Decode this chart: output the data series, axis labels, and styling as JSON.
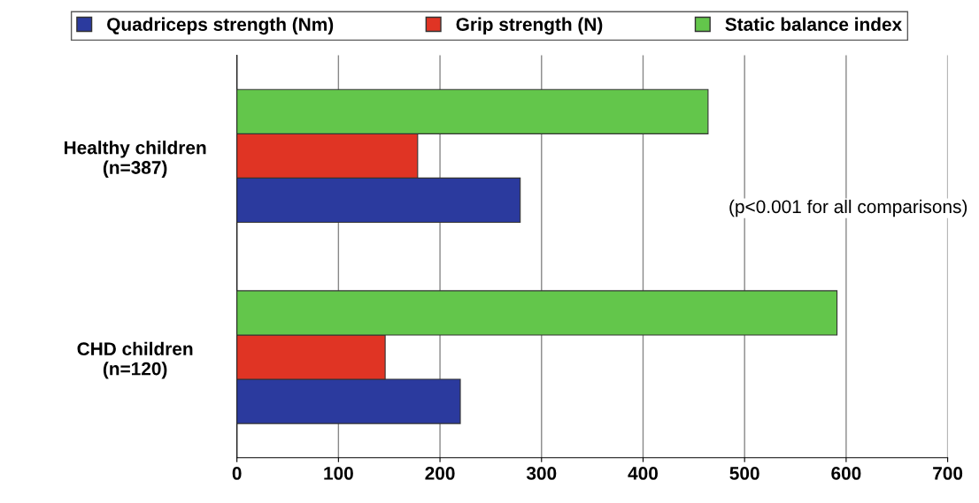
{
  "chart_data": {
    "type": "bar",
    "orientation": "horizontal",
    "categories": [
      "Healthy children\n(n=387)",
      "CHD children\n(n=120)"
    ],
    "series": [
      {
        "name": "Quadriceps strength (Nm)",
        "color": "#2b3a9e",
        "values": [
          279,
          220
        ]
      },
      {
        "name": "Grip strength (N)",
        "color": "#e03424",
        "values": [
          178,
          146
        ]
      },
      {
        "name": "Static balance index",
        "color": "#63c64b",
        "values": [
          464,
          591
        ]
      }
    ],
    "xlim": [
      0,
      700
    ],
    "xticks": [
      0,
      100,
      200,
      300,
      400,
      500,
      600,
      700
    ],
    "grid": "x",
    "legend": "top",
    "annotations": [
      "(p<0.001 for all comparisons)"
    ]
  }
}
